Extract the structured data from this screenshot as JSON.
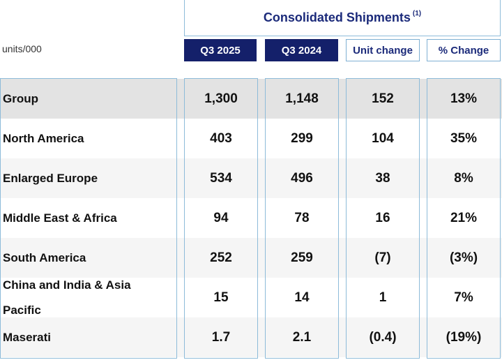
{
  "title": "Consolidated Shipments",
  "title_note": "(1)",
  "units": "units/000",
  "headers": [
    "Q3 2025",
    "Q3 2024",
    "Unit change",
    "% Change"
  ],
  "rows": [
    {
      "label": "Group",
      "values": [
        "1,300",
        "1,148",
        "152",
        "13%"
      ]
    },
    {
      "label": "North America",
      "values": [
        "403",
        "299",
        "104",
        "35%"
      ]
    },
    {
      "label": "Enlarged Europe",
      "values": [
        "534",
        "496",
        "38",
        "8%"
      ]
    },
    {
      "label": "Middle East & Africa",
      "values": [
        "94",
        "78",
        "16",
        "21%"
      ]
    },
    {
      "label": "South America",
      "values": [
        "252",
        "259",
        "(7)",
        "(3%)"
      ]
    },
    {
      "label": "China and India & Asia Pacific",
      "values": [
        "15",
        "14",
        "1",
        "7%"
      ]
    },
    {
      "label": "Maserati",
      "values": [
        "1.7",
        "2.1",
        "(0.4)",
        "(19%)"
      ]
    }
  ],
  "colors": {
    "dark_header": "#14206a",
    "accent_text": "#1b2a7a",
    "border": "#8dbbd9",
    "group_row": "#e3e3e3"
  }
}
